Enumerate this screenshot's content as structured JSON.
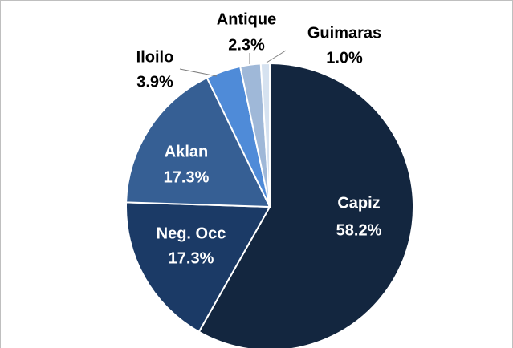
{
  "chart_data": {
    "type": "pie",
    "categories": [
      "Capiz",
      "Neg. Occ",
      "Aklan",
      "Iloilo",
      "Antique",
      "Guimaras"
    ],
    "values": [
      58.2,
      17.3,
      17.3,
      3.9,
      2.3,
      1.0
    ],
    "value_labels": [
      "58.2%",
      "17.3%",
      "17.3%",
      "3.9%",
      "2.3%",
      "1.0%"
    ],
    "colors": [
      "#13263f",
      "#1b3a66",
      "#365f94",
      "#4f8bd8",
      "#9fb8d8",
      "#d6e2f0"
    ]
  }
}
